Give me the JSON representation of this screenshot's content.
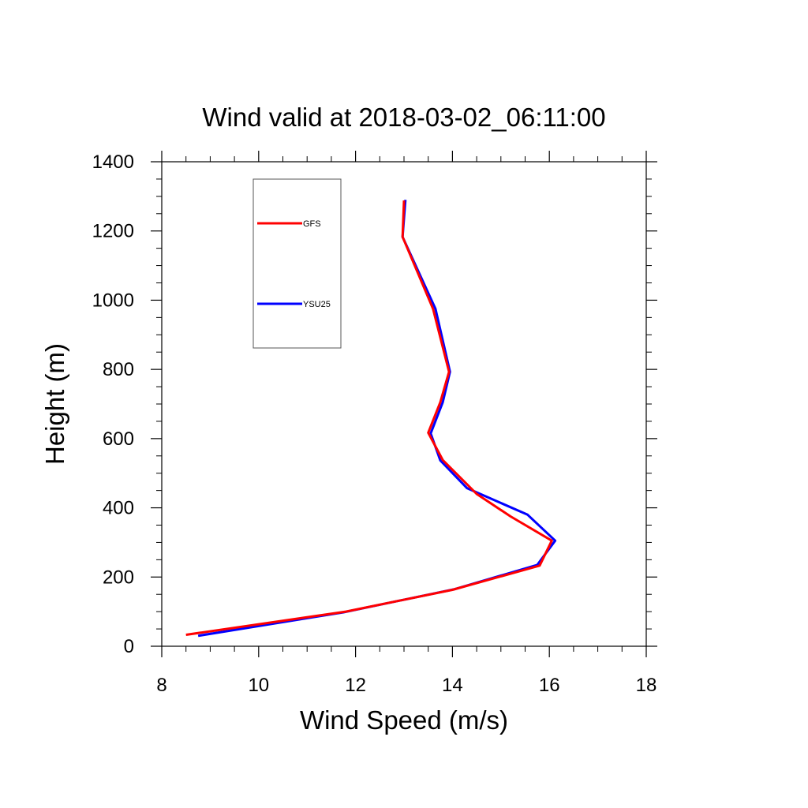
{
  "chart_data": {
    "type": "line",
    "title": "Wind valid at 2018-03-02_06:11:00",
    "xlabel": "Wind Speed (m/s)",
    "ylabel": "Height (m)",
    "xlim": [
      8,
      18
    ],
    "ylim": [
      0,
      1400
    ],
    "xticks": [
      8,
      10,
      12,
      14,
      16,
      18
    ],
    "yticks": [
      0,
      200,
      400,
      600,
      800,
      1000,
      1200,
      1400
    ],
    "x_minor_step": 0.5,
    "y_minor_step": 50,
    "grid": false,
    "legend_position": "top-left",
    "series": [
      {
        "name": "GFS",
        "color": "#ff0000",
        "points": [
          [
            8.5,
            33
          ],
          [
            11.8,
            100
          ],
          [
            14.0,
            163
          ],
          [
            15.8,
            233
          ],
          [
            16.05,
            305
          ],
          [
            15.2,
            375
          ],
          [
            14.5,
            440
          ],
          [
            13.8,
            538
          ],
          [
            13.5,
            617
          ],
          [
            13.75,
            705
          ],
          [
            13.93,
            793
          ],
          [
            13.6,
            975
          ],
          [
            12.97,
            1183
          ],
          [
            13.0,
            1288
          ]
        ]
      },
      {
        "name": "YSU25",
        "color": "#0000ff",
        "points": [
          [
            8.75,
            30
          ],
          [
            11.75,
            98
          ],
          [
            14.05,
            165
          ],
          [
            15.75,
            235
          ],
          [
            16.12,
            305
          ],
          [
            15.55,
            380
          ],
          [
            14.3,
            457
          ],
          [
            13.75,
            537
          ],
          [
            13.55,
            615
          ],
          [
            13.8,
            705
          ],
          [
            13.95,
            793
          ],
          [
            13.65,
            975
          ],
          [
            12.97,
            1183
          ],
          [
            13.03,
            1290
          ]
        ]
      }
    ]
  }
}
